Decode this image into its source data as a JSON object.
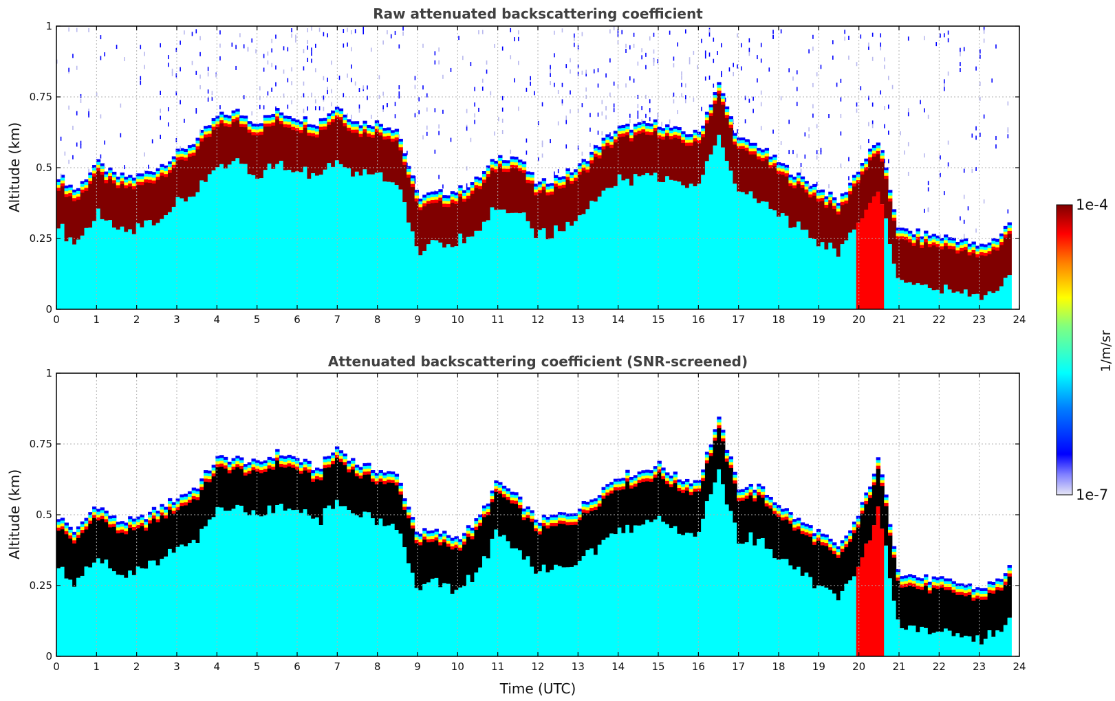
{
  "chart_data": [
    {
      "type": "heatmap",
      "title": "Raw attenuated backscattering coefficient",
      "xlabel": "",
      "ylabel": "Altitude (km)",
      "xlim": [
        0,
        24
      ],
      "ylim": [
        0,
        1
      ],
      "xticks": [
        "0",
        "1",
        "2",
        "3",
        "4",
        "5",
        "6",
        "7",
        "8",
        "9",
        "10",
        "11",
        "12",
        "13",
        "14",
        "15",
        "16",
        "17",
        "18",
        "19",
        "20",
        "21",
        "22",
        "23",
        "24"
      ],
      "yticks": [
        "0",
        "0.25",
        "0.5",
        "0.75",
        "1"
      ],
      "grid": true,
      "layer_top_km": {
        "x": [
          0,
          0.5,
          1,
          1.5,
          2,
          2.5,
          3,
          3.5,
          4,
          4.5,
          5,
          5.5,
          6,
          6.5,
          7,
          7.5,
          8,
          8.5,
          9,
          9.5,
          10,
          10.5,
          11,
          11.5,
          12,
          12.5,
          13,
          13.5,
          14,
          14.5,
          15,
          15.5,
          16,
          16.5,
          17,
          17.5,
          18,
          18.5,
          19,
          19.5,
          20,
          20.5,
          21,
          21.5,
          22,
          22.5,
          23,
          23.5,
          23.8
        ],
        "y": [
          0.48,
          0.42,
          0.52,
          0.47,
          0.47,
          0.5,
          0.55,
          0.6,
          0.68,
          0.7,
          0.66,
          0.7,
          0.68,
          0.66,
          0.72,
          0.66,
          0.66,
          0.64,
          0.4,
          0.41,
          0.42,
          0.46,
          0.54,
          0.54,
          0.44,
          0.47,
          0.5,
          0.58,
          0.64,
          0.65,
          0.66,
          0.63,
          0.62,
          0.8,
          0.6,
          0.58,
          0.52,
          0.47,
          0.43,
          0.38,
          0.5,
          0.6,
          0.28,
          0.27,
          0.26,
          0.25,
          0.22,
          0.26,
          0.32
        ]
      }
    },
    {
      "type": "heatmap",
      "title": "Attenuated backscattering coefficient (SNR-screened)",
      "xlabel": "Time (UTC)",
      "ylabel": "Altitude (km)",
      "xlim": [
        0,
        24
      ],
      "ylim": [
        0,
        1
      ],
      "xticks": [
        "0",
        "1",
        "2",
        "3",
        "4",
        "5",
        "6",
        "7",
        "8",
        "9",
        "10",
        "11",
        "12",
        "13",
        "14",
        "15",
        "16",
        "17",
        "18",
        "19",
        "20",
        "21",
        "22",
        "23",
        "24"
      ],
      "yticks": [
        "0",
        "0.25",
        "0.5",
        "0.75",
        "1"
      ],
      "grid": true,
      "layer_top_km": {
        "x": [
          0,
          0.5,
          1,
          1.5,
          2,
          2.5,
          3,
          3.5,
          4,
          4.5,
          5,
          5.5,
          6,
          6.5,
          7,
          7.5,
          8,
          8.5,
          9,
          9.5,
          10,
          10.5,
          11,
          11.5,
          12,
          12.5,
          13,
          13.5,
          14,
          14.5,
          15,
          15.5,
          16,
          16.5,
          17,
          17.5,
          18,
          18.5,
          19,
          19.5,
          20,
          20.5,
          21,
          21.5,
          22,
          22.5,
          23,
          23.5,
          23.8
        ],
        "y": [
          0.5,
          0.44,
          0.54,
          0.48,
          0.48,
          0.52,
          0.56,
          0.6,
          0.7,
          0.7,
          0.68,
          0.72,
          0.7,
          0.66,
          0.74,
          0.68,
          0.66,
          0.64,
          0.44,
          0.44,
          0.42,
          0.48,
          0.62,
          0.56,
          0.48,
          0.5,
          0.52,
          0.58,
          0.64,
          0.65,
          0.68,
          0.63,
          0.62,
          0.84,
          0.6,
          0.6,
          0.54,
          0.48,
          0.44,
          0.38,
          0.5,
          0.7,
          0.3,
          0.28,
          0.27,
          0.26,
          0.24,
          0.27,
          0.33
        ]
      }
    }
  ],
  "colorbar": {
    "min_label": "1e-7",
    "max_label": "1e-4",
    "label": "1/m/sr",
    "colormap": [
      "#e6e6f5",
      "#0000ff",
      "#00ffff",
      "#ffff00",
      "#ff0000",
      "#800000"
    ]
  }
}
